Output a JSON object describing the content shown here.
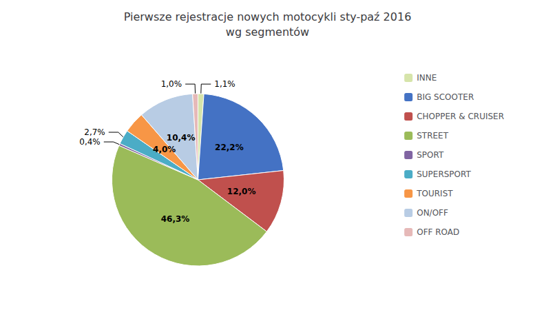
{
  "chart_data": {
    "type": "pie",
    "title": "Pierwsze rejestracje nowych motocykli sty-paź 2016\nwg segmentów",
    "categories": [
      "INNE",
      "BIG SCOOTER",
      "CHOPPER & CRUISER",
      "STREET",
      "SPORT",
      "SUPERSPORT",
      "TOURIST",
      "ON/OFF",
      "OFF ROAD"
    ],
    "values": [
      1.1,
      22.2,
      12.0,
      46.3,
      0.4,
      2.7,
      4.0,
      10.4,
      1.0
    ],
    "value_labels": [
      "1,1%",
      "22,2%",
      "12,0%",
      "46,3%",
      "0,4%",
      "2,7%",
      "4,0%",
      "10,4%",
      "1,0%"
    ],
    "colors": [
      "#D6E4AA",
      "#4472C4",
      "#C0504D",
      "#9BBB59",
      "#8064A2",
      "#4BACC6",
      "#F79646",
      "#B8CCE4",
      "#E6B9B8"
    ],
    "data_labels": true,
    "legend": "right"
  }
}
